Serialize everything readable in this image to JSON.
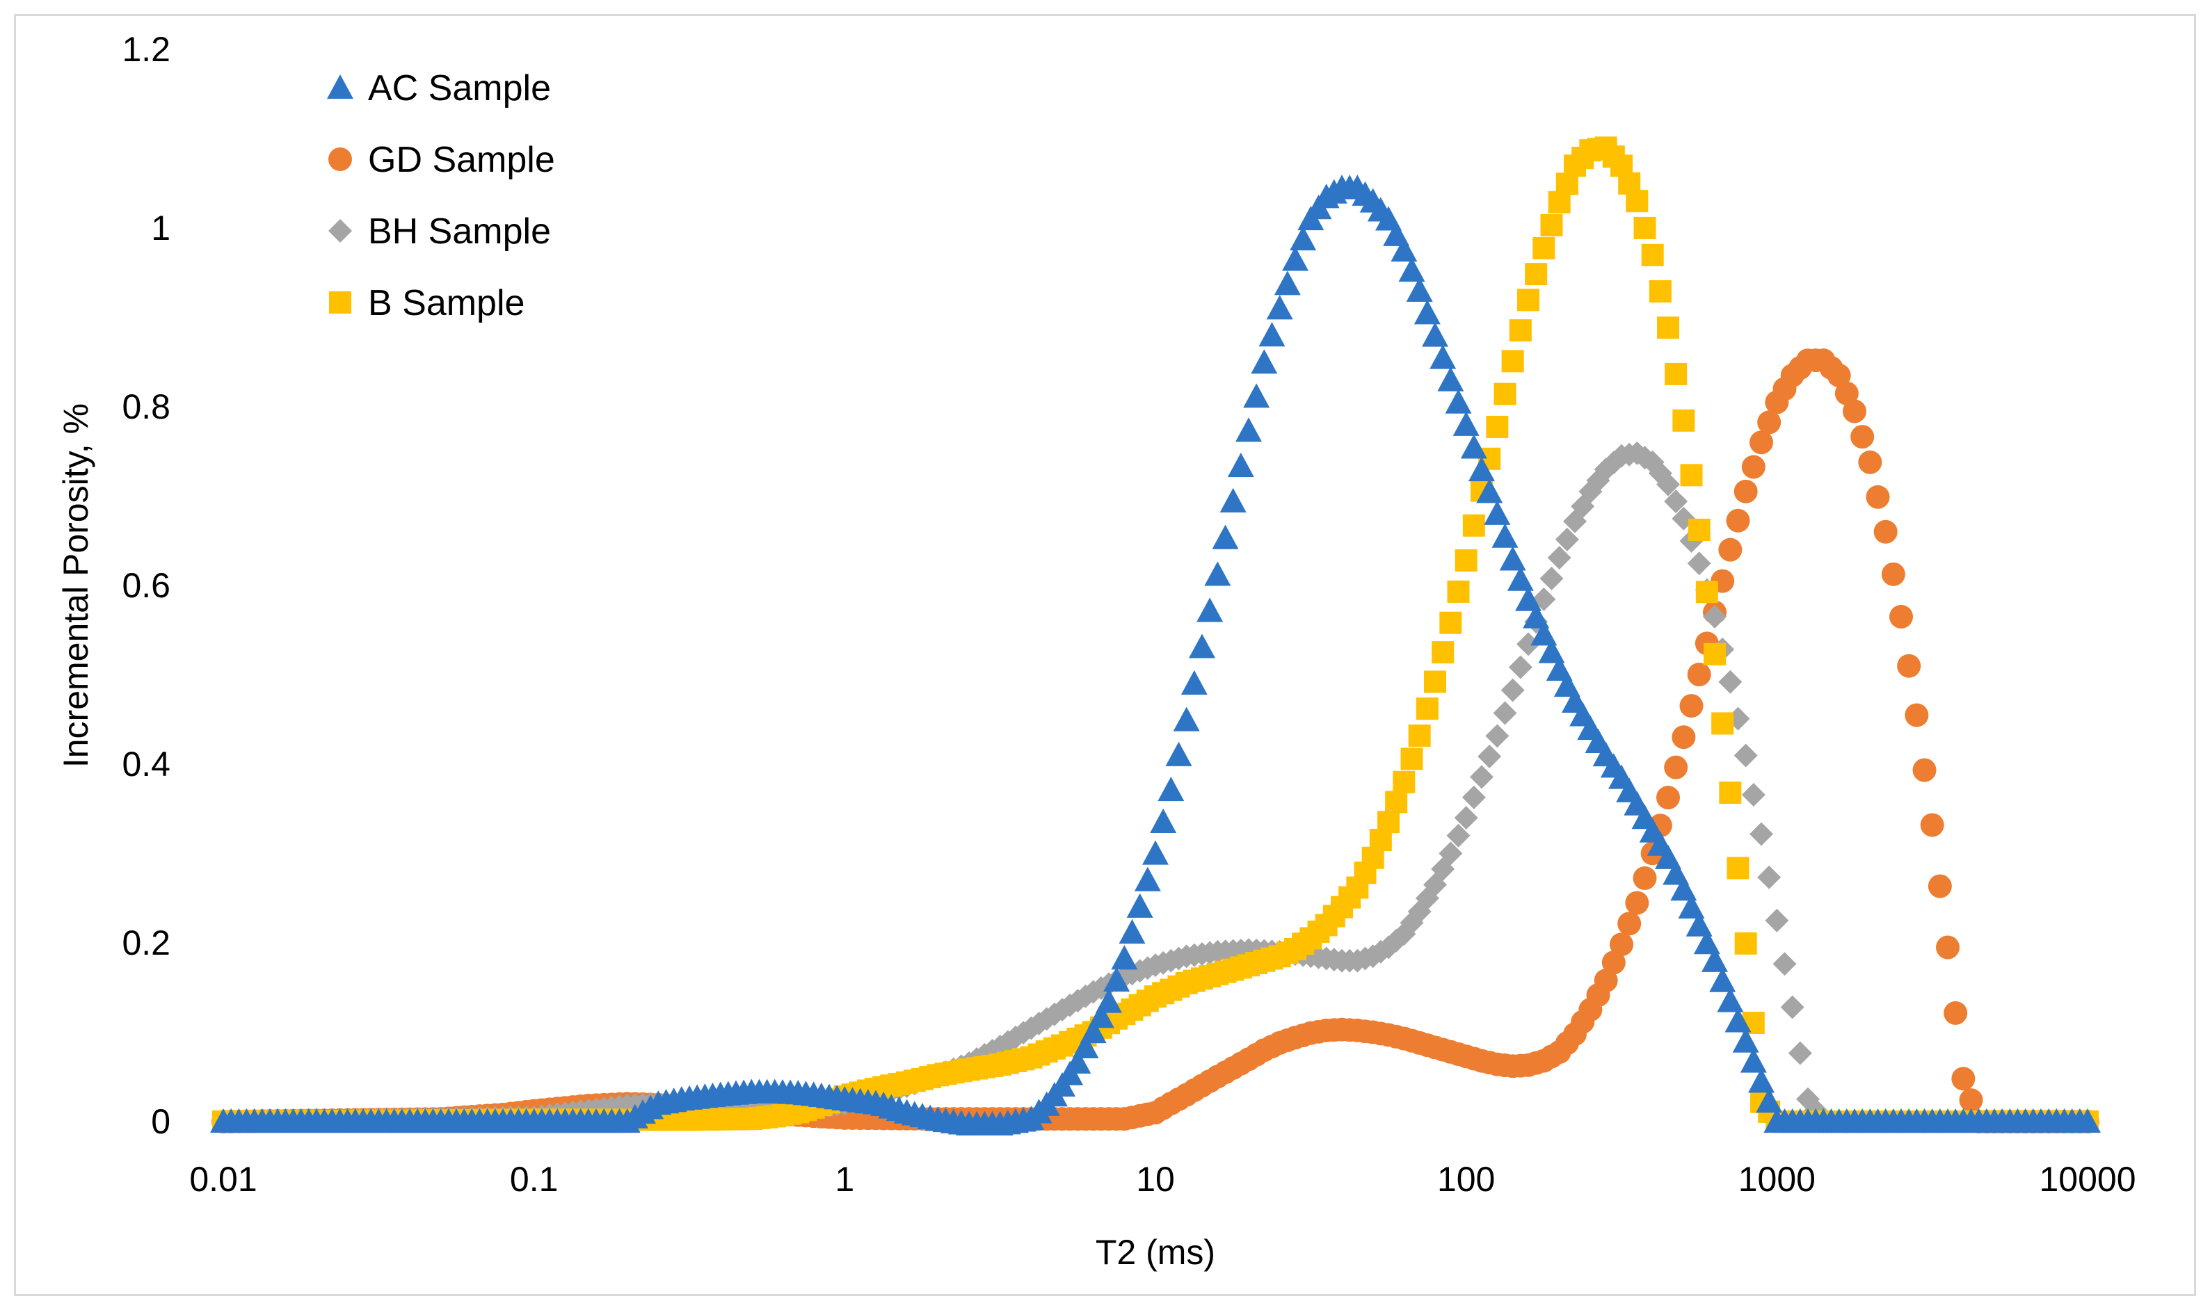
{
  "chart_data": {
    "type": "scatter",
    "title": "",
    "xlabel": "T2 (ms)",
    "ylabel": "Incremental Porosity, %",
    "xscale": "log",
    "xlim": [
      0.01,
      10000
    ],
    "ylim": [
      0,
      1.2
    ],
    "x_ticks": [
      0.01,
      0.1,
      1,
      10,
      100,
      1000,
      10000
    ],
    "x_tick_labels": [
      "0.01",
      "0.1",
      "1",
      "10",
      "100",
      "1000",
      "10000"
    ],
    "y_ticks": [
      0,
      0.2,
      0.4,
      0.6,
      0.8,
      1,
      1.2
    ],
    "y_tick_labels": [
      "0",
      "0.2",
      "0.4",
      "0.6",
      "0.8",
      "1",
      "1.2"
    ],
    "grid": false,
    "legend_position": "top-left",
    "series": [
      {
        "name": "AC Sample",
        "marker": "triangle",
        "color": "#2E75C6",
        "points": [
          [
            0.01,
            0
          ],
          [
            0.2,
            0
          ],
          [
            0.25,
            0.02
          ],
          [
            0.3,
            0.025
          ],
          [
            0.4,
            0.03
          ],
          [
            0.5,
            0.033
          ],
          [
            0.6,
            0.033
          ],
          [
            0.7,
            0.032
          ],
          [
            0.8,
            0.03
          ],
          [
            1,
            0.025
          ],
          [
            1.3,
            0.02
          ],
          [
            1.6,
            0.01
          ],
          [
            2,
            0.002
          ],
          [
            2.5,
            -0.003
          ],
          [
            3.2,
            -0.003
          ],
          [
            4,
            0.003
          ],
          [
            4.5,
            0.02
          ],
          [
            5,
            0.04
          ],
          [
            5.6,
            0.065
          ],
          [
            6.3,
            0.1
          ],
          [
            7.1,
            0.135
          ],
          [
            7.9,
            0.18
          ],
          [
            8.9,
            0.24
          ],
          [
            10,
            0.3
          ],
          [
            11.2,
            0.37
          ],
          [
            12.6,
            0.45
          ],
          [
            14.1,
            0.53
          ],
          [
            15.8,
            0.61
          ],
          [
            17.8,
            0.695
          ],
          [
            20,
            0.775
          ],
          [
            22.4,
            0.85
          ],
          [
            25.1,
            0.91
          ],
          [
            28.2,
            0.965
          ],
          [
            31.6,
            1.01
          ],
          [
            35.5,
            1.035
          ],
          [
            39.8,
            1.045
          ],
          [
            44.7,
            1.045
          ],
          [
            50.1,
            1.03
          ],
          [
            56.2,
            1.01
          ],
          [
            63.1,
            0.975
          ],
          [
            70.8,
            0.93
          ],
          [
            79.4,
            0.88
          ],
          [
            89.1,
            0.83
          ],
          [
            100,
            0.78
          ],
          [
            112,
            0.73
          ],
          [
            126,
            0.68
          ],
          [
            141,
            0.63
          ],
          [
            158,
            0.585
          ],
          [
            178,
            0.545
          ],
          [
            200,
            0.505
          ],
          [
            224,
            0.47
          ],
          [
            251,
            0.44
          ],
          [
            282,
            0.41
          ],
          [
            316,
            0.385
          ],
          [
            355,
            0.355
          ],
          [
            398,
            0.325
          ],
          [
            447,
            0.295
          ],
          [
            501,
            0.26
          ],
          [
            562,
            0.22
          ],
          [
            631,
            0.18
          ],
          [
            708,
            0.135
          ],
          [
            794,
            0.09
          ],
          [
            891,
            0.045
          ],
          [
            1000,
            0
          ],
          [
            10000,
            0
          ]
        ]
      },
      {
        "name": "GD Sample",
        "marker": "circle",
        "color": "#ED7D31",
        "points": [
          [
            0.01,
            0
          ],
          [
            0.05,
            0.003
          ],
          [
            0.08,
            0.008
          ],
          [
            0.1,
            0.012
          ],
          [
            0.15,
            0.018
          ],
          [
            0.2,
            0.02
          ],
          [
            0.3,
            0.018
          ],
          [
            0.4,
            0.014
          ],
          [
            0.6,
            0.009
          ],
          [
            0.8,
            0.006
          ],
          [
            1,
            0.004
          ],
          [
            2,
            0.003
          ],
          [
            5,
            0.003
          ],
          [
            8,
            0.003
          ],
          [
            10,
            0.01
          ],
          [
            11.2,
            0.02
          ],
          [
            12.6,
            0.03
          ],
          [
            14.1,
            0.04
          ],
          [
            15.8,
            0.05
          ],
          [
            17.8,
            0.06
          ],
          [
            20,
            0.07
          ],
          [
            22.4,
            0.08
          ],
          [
            25.1,
            0.088
          ],
          [
            28.2,
            0.094
          ],
          [
            31.6,
            0.099
          ],
          [
            35.5,
            0.102
          ],
          [
            39.8,
            0.103
          ],
          [
            44.7,
            0.102
          ],
          [
            50.1,
            0.1
          ],
          [
            56.2,
            0.097
          ],
          [
            63.1,
            0.093
          ],
          [
            70.8,
            0.088
          ],
          [
            79.4,
            0.083
          ],
          [
            89.1,
            0.078
          ],
          [
            100,
            0.073
          ],
          [
            112,
            0.068
          ],
          [
            126,
            0.064
          ],
          [
            141,
            0.062
          ],
          [
            158,
            0.063
          ],
          [
            178,
            0.068
          ],
          [
            200,
            0.078
          ],
          [
            224,
            0.098
          ],
          [
            251,
            0.125
          ],
          [
            282,
            0.158
          ],
          [
            316,
            0.198
          ],
          [
            355,
            0.245
          ],
          [
            398,
            0.3
          ],
          [
            447,
            0.363
          ],
          [
            501,
            0.43
          ],
          [
            562,
            0.5
          ],
          [
            631,
            0.57
          ],
          [
            708,
            0.64
          ],
          [
            794,
            0.705
          ],
          [
            891,
            0.76
          ],
          [
            1000,
            0.805
          ],
          [
            1122,
            0.835
          ],
          [
            1259,
            0.852
          ],
          [
            1413,
            0.852
          ],
          [
            1585,
            0.835
          ],
          [
            1778,
            0.795
          ],
          [
            1995,
            0.738
          ],
          [
            2239,
            0.66
          ],
          [
            2512,
            0.565
          ],
          [
            2818,
            0.455
          ],
          [
            3162,
            0.332
          ],
          [
            3548,
            0.195
          ],
          [
            3981,
            0.048
          ],
          [
            4467,
            0
          ],
          [
            10000,
            0
          ]
        ]
      },
      {
        "name": "BH Sample",
        "marker": "diamond",
        "color": "#A5A5A5",
        "points": [
          [
            0.01,
            0
          ],
          [
            0.1,
            0.005
          ],
          [
            0.2,
            0.018
          ],
          [
            0.3,
            0.022
          ],
          [
            0.4,
            0.022
          ],
          [
            0.5,
            0.02
          ],
          [
            0.6,
            0.018
          ],
          [
            0.8,
            0.015
          ],
          [
            1,
            0.02
          ],
          [
            1.3,
            0.03
          ],
          [
            1.6,
            0.04
          ],
          [
            2,
            0.052
          ],
          [
            2.5,
            0.065
          ],
          [
            3.2,
            0.085
          ],
          [
            4,
            0.105
          ],
          [
            5,
            0.125
          ],
          [
            6.3,
            0.145
          ],
          [
            7.9,
            0.162
          ],
          [
            10,
            0.175
          ],
          [
            12.6,
            0.185
          ],
          [
            15.8,
            0.19
          ],
          [
            20,
            0.192
          ],
          [
            25.1,
            0.19
          ],
          [
            31.6,
            0.185
          ],
          [
            39.8,
            0.18
          ],
          [
            44.7,
            0.18
          ],
          [
            50.1,
            0.185
          ],
          [
            56.2,
            0.195
          ],
          [
            63.1,
            0.21
          ],
          [
            70.8,
            0.235
          ],
          [
            79.4,
            0.265
          ],
          [
            89.1,
            0.3
          ],
          [
            100,
            0.34
          ],
          [
            112,
            0.385
          ],
          [
            126,
            0.432
          ],
          [
            141,
            0.482
          ],
          [
            158,
            0.533
          ],
          [
            178,
            0.585
          ],
          [
            200,
            0.632
          ],
          [
            224,
            0.672
          ],
          [
            251,
            0.705
          ],
          [
            282,
            0.73
          ],
          [
            316,
            0.745
          ],
          [
            355,
            0.748
          ],
          [
            398,
            0.738
          ],
          [
            447,
            0.713
          ],
          [
            501,
            0.675
          ],
          [
            562,
            0.625
          ],
          [
            631,
            0.565
          ],
          [
            708,
            0.492
          ],
          [
            794,
            0.41
          ],
          [
            891,
            0.322
          ],
          [
            1000,
            0.225
          ],
          [
            1122,
            0.128
          ],
          [
            1259,
            0.025
          ],
          [
            1413,
            0
          ],
          [
            10000,
            0
          ]
        ]
      },
      {
        "name": "B Sample",
        "marker": "square",
        "color": "#FFC000",
        "points": [
          [
            0.01,
            0
          ],
          [
            0.1,
            0.002
          ],
          [
            0.3,
            0.002
          ],
          [
            0.5,
            0.003
          ],
          [
            0.6,
            0.006
          ],
          [
            0.7,
            0.01
          ],
          [
            0.8,
            0.016
          ],
          [
            0.9,
            0.022
          ],
          [
            1,
            0.028
          ],
          [
            1.2,
            0.035
          ],
          [
            1.4,
            0.04
          ],
          [
            1.6,
            0.044
          ],
          [
            1.8,
            0.048
          ],
          [
            2,
            0.052
          ],
          [
            2.5,
            0.058
          ],
          [
            3.2,
            0.064
          ],
          [
            4,
            0.072
          ],
          [
            5,
            0.085
          ],
          [
            6.3,
            0.1
          ],
          [
            7.9,
            0.12
          ],
          [
            10,
            0.14
          ],
          [
            12.6,
            0.155
          ],
          [
            15.8,
            0.165
          ],
          [
            20,
            0.175
          ],
          [
            25.1,
            0.185
          ],
          [
            28.2,
            0.193
          ],
          [
            31.6,
            0.205
          ],
          [
            35.5,
            0.22
          ],
          [
            39.8,
            0.24
          ],
          [
            44.7,
            0.262
          ],
          [
            50.1,
            0.295
          ],
          [
            56.2,
            0.335
          ],
          [
            63.1,
            0.38
          ],
          [
            70.8,
            0.432
          ],
          [
            79.4,
            0.492
          ],
          [
            89.1,
            0.558
          ],
          [
            100,
            0.628
          ],
          [
            112,
            0.705
          ],
          [
            126,
            0.778
          ],
          [
            141,
            0.85
          ],
          [
            158,
            0.918
          ],
          [
            178,
            0.978
          ],
          [
            200,
            1.03
          ],
          [
            224,
            1.07
          ],
          [
            251,
            1.087
          ],
          [
            282,
            1.09
          ],
          [
            316,
            1.07
          ],
          [
            355,
            1.03
          ],
          [
            398,
            0.97
          ],
          [
            447,
            0.888
          ],
          [
            501,
            0.785
          ],
          [
            562,
            0.663
          ],
          [
            631,
            0.523
          ],
          [
            708,
            0.368
          ],
          [
            794,
            0.2
          ],
          [
            891,
            0.022
          ],
          [
            1000,
            0
          ],
          [
            10000,
            0
          ]
        ]
      }
    ]
  }
}
